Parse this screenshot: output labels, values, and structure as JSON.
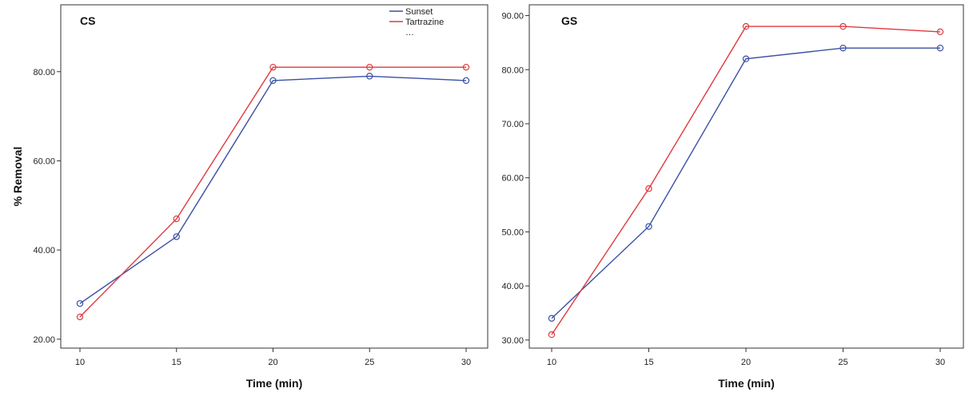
{
  "colors": {
    "sunset": "#3a4fa3",
    "tartrazine": "#e0393e"
  },
  "legend": {
    "items": [
      "Sunset",
      "Tartrazine"
    ],
    "more": "…",
    "placement": "top-right of CS panel"
  },
  "shared": {
    "ylabel": "% Removal"
  },
  "chart_data": [
    {
      "type": "line",
      "title": "CS",
      "xlabel": "Time (min)",
      "ylabel": "% Removal",
      "x": [
        10,
        15,
        20,
        25,
        30
      ],
      "xticks": [
        "10",
        "15",
        "20",
        "25",
        "30"
      ],
      "ylim": [
        18,
        95
      ],
      "yticks": [
        "20.00",
        "40.00",
        "60.00",
        "80.00"
      ],
      "grid": false,
      "series": [
        {
          "name": "Sunset",
          "values": [
            28,
            43,
            78,
            79,
            78
          ]
        },
        {
          "name": "Tartrazine",
          "values": [
            25,
            47,
            81,
            81,
            81
          ]
        }
      ]
    },
    {
      "type": "line",
      "title": "GS",
      "xlabel": "Time (min)",
      "ylabel": "",
      "x": [
        10,
        15,
        20,
        25,
        30
      ],
      "xticks": [
        "10",
        "15",
        "20",
        "25",
        "30"
      ],
      "ylim": [
        28.5,
        92
      ],
      "yticks": [
        "30.00",
        "40.00",
        "50.00",
        "60.00",
        "70.00",
        "80.00",
        "90.00"
      ],
      "grid": false,
      "series": [
        {
          "name": "Sunset",
          "values": [
            34,
            51,
            82,
            84,
            84
          ]
        },
        {
          "name": "Tartrazine",
          "values": [
            31,
            58,
            88,
            88,
            87
          ]
        }
      ]
    }
  ]
}
